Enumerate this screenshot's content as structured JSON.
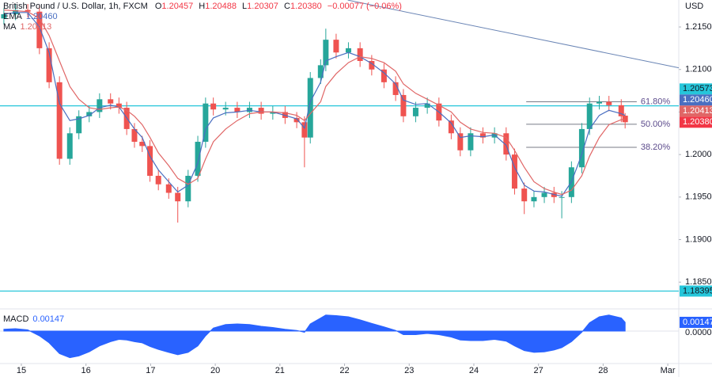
{
  "chart_data": {
    "type": "candlestick",
    "title": "British Pound / U.S. Dollar, 1h, FXCM",
    "ohlc_prefixes": [
      "O",
      "H",
      "L",
      "C"
    ],
    "change_label": "−0.00077 (−0.06%)",
    "currency": "USD",
    "up_color": "#26a69a",
    "down_color": "#ef5350",
    "x": [
      -0.27,
      -0.09,
      0.1,
      0.28,
      0.43,
      0.59,
      0.75,
      0.89,
      1.05,
      1.21,
      1.38,
      1.51,
      1.63,
      1.75,
      1.87,
      1.99,
      2.12,
      2.28,
      2.42,
      2.58,
      2.73,
      2.85,
      2.97,
      3.16,
      3.34,
      3.53,
      3.71,
      3.89,
      4.08,
      4.26,
      4.38,
      4.47,
      4.63,
      4.71,
      4.87,
      5.06,
      5.24,
      5.42,
      5.61,
      5.79,
      5.91,
      6.1,
      6.28,
      6.46,
      6.65,
      6.79,
      6.95,
      7.14,
      7.32,
      7.5,
      7.63,
      7.78,
      7.93,
      8.09,
      8.24,
      8.36,
      8.51,
      8.67,
      8.79,
      8.94,
      9.09,
      9.28,
      9.34
    ],
    "open": [
      1.216,
      1.2165,
      1.217,
      1.2168,
      1.2125,
      1.2085,
      1.1995,
      1.2025,
      1.2045,
      1.205,
      1.2065,
      1.206,
      1.2055,
      1.203,
      1.2015,
      1.201,
      1.1975,
      1.1965,
      1.1955,
      1.1945,
      1.1975,
      1.2015,
      1.206,
      1.2053,
      1.2055,
      1.205,
      1.2055,
      1.2048,
      1.205,
      1.2043,
      1.2038,
      1.202,
      1.209,
      1.2105,
      1.2135,
      1.212,
      1.2125,
      1.211,
      1.21,
      1.2085,
      1.207,
      1.2045,
      1.2055,
      1.206,
      1.204,
      1.2025,
      1.2005,
      1.2025,
      1.202,
      1.2025,
      1.2,
      1.196,
      1.1945,
      1.195,
      1.1955,
      1.195,
      1.195,
      1.1985,
      1.203,
      1.206,
      1.2062,
      1.2058,
      1.20457
    ],
    "high": [
      1.2172,
      1.2177,
      1.2177,
      1.2175,
      1.2132,
      1.2092,
      1.2032,
      1.2052,
      1.2057,
      1.2072,
      1.2072,
      1.2067,
      1.2062,
      1.2037,
      1.2022,
      1.2017,
      1.1982,
      1.1972,
      1.1962,
      1.1982,
      1.2022,
      1.2067,
      1.2067,
      1.2062,
      1.2062,
      1.2062,
      1.2062,
      1.2057,
      1.2057,
      1.205,
      1.2045,
      1.2097,
      1.2112,
      1.2148,
      1.2142,
      1.2132,
      1.2132,
      1.2117,
      1.2107,
      1.2092,
      1.2077,
      1.2062,
      1.2067,
      1.2067,
      1.2047,
      1.2032,
      1.2032,
      1.2032,
      1.2032,
      1.2032,
      1.2007,
      1.1967,
      1.1957,
      1.1962,
      1.1962,
      1.1957,
      1.1992,
      1.2037,
      1.2067,
      1.2069,
      1.2069,
      1.2065,
      1.20488
    ],
    "low": [
      1.2153,
      1.2158,
      1.2161,
      1.2118,
      1.2078,
      1.1988,
      1.1988,
      1.2018,
      1.2038,
      1.2043,
      1.2053,
      1.2048,
      1.2023,
      1.2008,
      1.2003,
      1.1968,
      1.1958,
      1.1948,
      1.192,
      1.1938,
      1.1968,
      1.2008,
      1.2046,
      1.2046,
      1.2043,
      1.2043,
      1.2041,
      1.2041,
      1.2036,
      1.2031,
      1.1985,
      1.2013,
      1.2083,
      1.2098,
      1.2113,
      1.2113,
      1.2103,
      1.2093,
      1.2078,
      1.2063,
      1.2038,
      1.2038,
      1.2048,
      1.2033,
      1.2018,
      1.1998,
      1.1998,
      1.2013,
      1.2013,
      1.1993,
      1.1953,
      1.193,
      1.1938,
      1.1943,
      1.1943,
      1.1925,
      1.1943,
      1.1978,
      1.2023,
      1.2053,
      1.2051,
      1.2038,
      1.20307
    ],
    "close": [
      1.2165,
      1.217,
      1.2168,
      1.2125,
      1.2085,
      1.1995,
      1.2025,
      1.2045,
      1.205,
      1.2065,
      1.206,
      1.2055,
      1.203,
      1.2015,
      1.201,
      1.1975,
      1.1965,
      1.1955,
      1.1945,
      1.1975,
      1.2015,
      1.206,
      1.2053,
      1.2055,
      1.205,
      1.2055,
      1.2048,
      1.205,
      1.2043,
      1.2038,
      1.202,
      1.209,
      1.2105,
      1.2135,
      1.212,
      1.2125,
      1.211,
      1.21,
      1.2085,
      1.207,
      1.2045,
      1.2055,
      1.206,
      1.204,
      1.2025,
      1.2005,
      1.2025,
      1.202,
      1.2025,
      1.2,
      1.196,
      1.1945,
      1.195,
      1.1955,
      1.195,
      1.195,
      1.1985,
      1.203,
      1.206,
      1.2062,
      1.2058,
      1.2045,
      1.2038
    ],
    "series": [
      {
        "name": "EMA",
        "color": "#4a6fc1",
        "values": [
          1.2165,
          1.2167,
          1.2167,
          1.215,
          1.212,
          1.206,
          1.204,
          1.2042,
          1.2046,
          1.2055,
          1.2058,
          1.2056,
          1.2043,
          1.203,
          1.202,
          1.1998,
          1.1982,
          1.1968,
          1.1956,
          1.1964,
          1.199,
          1.203,
          1.2043,
          1.2049,
          1.205,
          1.2052,
          1.205,
          1.205,
          1.2046,
          1.2042,
          1.2031,
          1.2062,
          1.2085,
          1.211,
          1.2115,
          1.212,
          1.2115,
          1.2107,
          1.2096,
          1.2083,
          1.2064,
          1.2059,
          1.206,
          1.205,
          1.2037,
          1.202,
          1.2022,
          1.2021,
          1.2023,
          1.2011,
          1.1985,
          1.1964,
          1.1957,
          1.1956,
          1.1953,
          1.1951,
          1.1968,
          1.2,
          1.203,
          1.2046,
          1.2052,
          1.2048,
          1.2046
        ]
      },
      {
        "name": "MA",
        "color": "#e06666",
        "values": [
          1.217,
          1.2169,
          1.2168,
          1.216,
          1.214,
          1.211,
          1.208,
          1.2065,
          1.2055,
          1.2053,
          1.2055,
          1.2056,
          1.2052,
          1.2045,
          1.2035,
          1.202,
          1.2002,
          1.1987,
          1.1972,
          1.1965,
          1.1972,
          1.1995,
          1.2015,
          1.203,
          1.204,
          1.2048,
          1.205,
          1.205,
          1.2049,
          1.2046,
          1.204,
          1.2048,
          1.2062,
          1.208,
          1.2095,
          1.2108,
          1.2115,
          1.2113,
          1.2108,
          1.2098,
          1.2083,
          1.2072,
          1.2065,
          1.2058,
          1.205,
          1.2038,
          1.203,
          1.2026,
          1.2025,
          1.202,
          1.2005,
          1.1985,
          1.1968,
          1.196,
          1.1956,
          1.1953,
          1.1958,
          1.1975,
          1.1998,
          1.202,
          1.2035,
          1.2041,
          1.20413
        ]
      }
    ],
    "xlim": [
      -0.33,
      10.17
    ],
    "xticks": [
      {
        "value": 0,
        "label": "15"
      },
      {
        "value": 1,
        "label": "16"
      },
      {
        "value": 2,
        "label": "17"
      },
      {
        "value": 3,
        "label": "20"
      },
      {
        "value": 4,
        "label": "21"
      },
      {
        "value": 5,
        "label": "22"
      },
      {
        "value": 6,
        "label": "23"
      },
      {
        "value": 7,
        "label": "24"
      },
      {
        "value": 8,
        "label": "27"
      },
      {
        "value": 9,
        "label": "28"
      },
      {
        "value": 10,
        "label": "Mar"
      }
    ],
    "ylim": [
      1.18204,
      1.21817
    ],
    "yticks": [
      {
        "value": 1.185,
        "label": "1.18500"
      },
      {
        "value": 1.19,
        "label": "1.19000"
      },
      {
        "value": 1.195,
        "label": "1.19500"
      },
      {
        "value": 1.2,
        "label": "1.20000"
      },
      {
        "value": 1.205,
        "label": "1.20500"
      },
      {
        "value": 1.21,
        "label": "1.21000"
      },
      {
        "value": 1.215,
        "label": "1.21500"
      }
    ],
    "price_badges": [
      {
        "value": 1.20573,
        "label": "1.20573",
        "color": "#26c6da",
        "line": true
      },
      {
        "value": 1.2046,
        "label": "1.20460",
        "color": "#4a6fc1",
        "line": false
      },
      {
        "value": 1.20413,
        "label": "1.20413",
        "color": "#e06666",
        "line": false
      },
      {
        "value": 1.2038,
        "label": "1.20380",
        "color": "#f23645",
        "line": false
      },
      {
        "value": 1.18395,
        "label": "1.18395",
        "color": "#26c6da",
        "line": true
      }
    ],
    "trendline": {
      "color": "#6a85b5",
      "x": [
        5.05,
        10.17
      ],
      "y": [
        1.21816,
        1.2102
      ]
    },
    "fib": {
      "x": [
        7.81,
        9.52
      ],
      "levels": [
        {
          "value": 1.2062,
          "label": "61.80%"
        },
        {
          "value": 1.20356,
          "label": "50.00%"
        },
        {
          "value": 1.20085,
          "label": "38.20%"
        }
      ]
    },
    "macd": {
      "type": "area",
      "name": "MACD",
      "color": "#2962ff",
      "values": [
        0.0003,
        0.0004,
        0.0002,
        -0.0008,
        -0.002,
        -0.0038,
        -0.0045,
        -0.0042,
        -0.0035,
        -0.0025,
        -0.0018,
        -0.0014,
        -0.0015,
        -0.0018,
        -0.002,
        -0.0026,
        -0.0031,
        -0.0036,
        -0.004,
        -0.0036,
        -0.0025,
        -0.0008,
        0.0005,
        0.0011,
        0.0012,
        0.0011,
        0.0008,
        0.0006,
        0.0003,
        0.0001,
        -0.0002,
        0.0012,
        0.0022,
        0.0027,
        0.0026,
        0.0024,
        0.0019,
        0.0013,
        0.0007,
        0.0001,
        -0.0006,
        -0.0006,
        -0.0004,
        -0.0006,
        -0.001,
        -0.0015,
        -0.0016,
        -0.0016,
        -0.0014,
        -0.0017,
        -0.0025,
        -0.0033,
        -0.0036,
        -0.0035,
        -0.0032,
        -0.0028,
        -0.0018,
        -0.0002,
        0.0014,
        0.0024,
        0.0027,
        0.0022,
        0.00147
      ],
      "ylim": [
        -0.00535,
        0.00334
      ],
      "yticks": [
        {
          "value": 0,
          "label": "0.00000"
        }
      ]
    }
  }
}
